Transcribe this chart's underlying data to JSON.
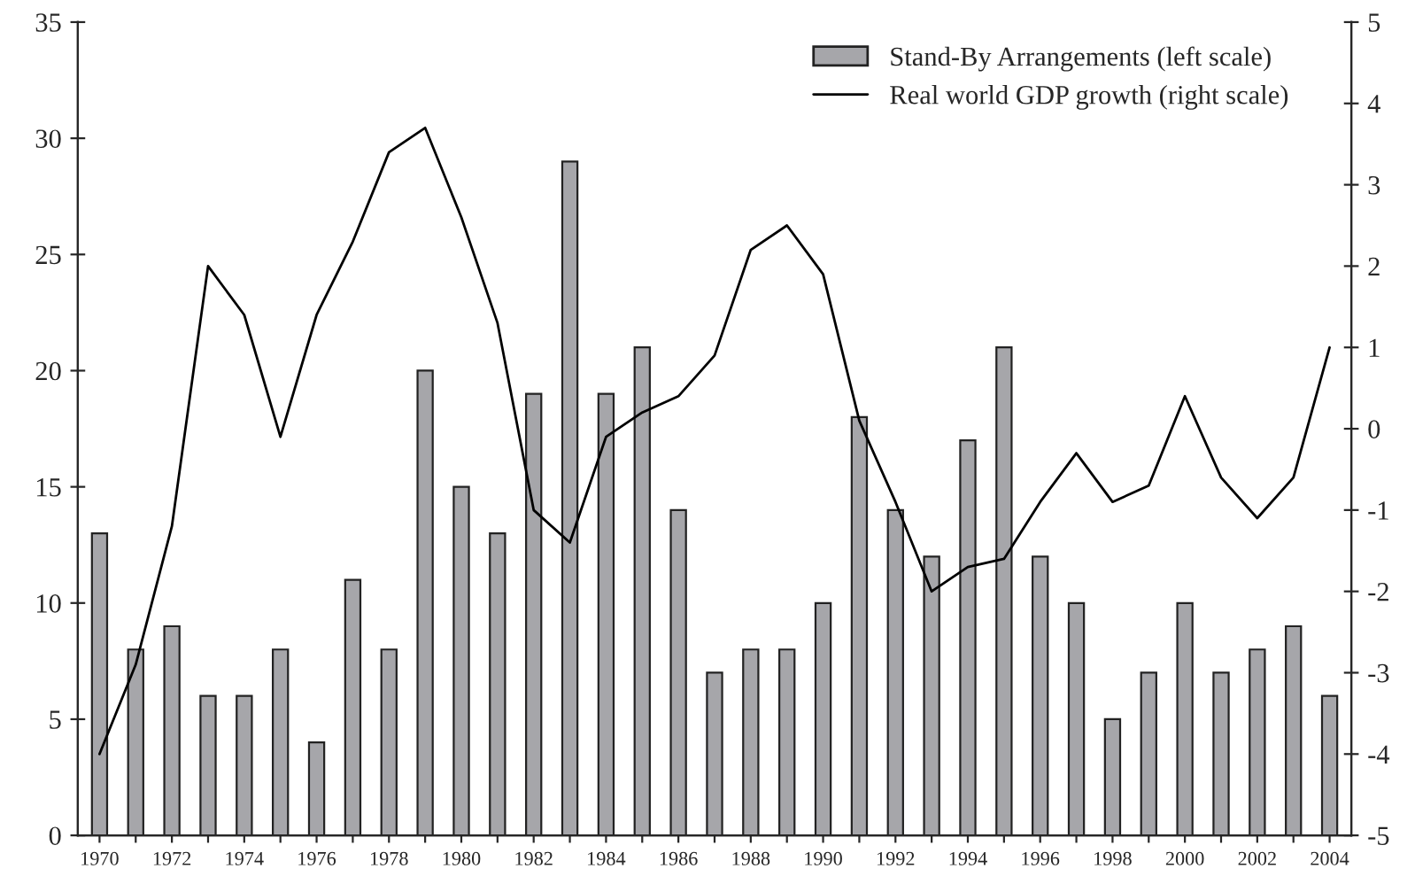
{
  "chart_data": {
    "type": "bar",
    "categories": [
      "1970",
      null,
      "1972",
      null,
      "1974",
      null,
      "1976",
      null,
      "1978",
      null,
      "1980",
      null,
      "1982",
      null,
      "1984",
      null,
      "1986",
      null,
      "1988",
      null,
      "1990",
      null,
      "1992",
      null,
      "1994",
      null,
      "1996",
      null,
      "1998",
      null,
      "2000",
      null,
      "2002",
      null,
      "2004"
    ],
    "series": [
      {
        "name": "Stand-By Arrangements (left scale)",
        "color": "#a6a6aa",
        "values": [
          13,
          8,
          9,
          6,
          6,
          8,
          4,
          11,
          8,
          20,
          15,
          13,
          19,
          29,
          19,
          21,
          14,
          7,
          8,
          8,
          10,
          18,
          14,
          12,
          17,
          21,
          12,
          10,
          5,
          7,
          10,
          7,
          8,
          9,
          6
        ]
      },
      {
        "name": "Real world GDP growth (right scale)",
        "type": "line",
        "axis": "y2",
        "color": "#000000",
        "values": [
          -4.0,
          -2.9,
          -1.2,
          2.0,
          1.4,
          -0.1,
          1.4,
          2.3,
          3.4,
          3.7,
          2.6,
          1.3,
          -1.0,
          -1.4,
          -0.1,
          0.2,
          0.4,
          0.9,
          2.2,
          2.5,
          1.9,
          0.1,
          -0.9,
          -2.0,
          -1.7,
          -1.6,
          -0.9,
          -0.3,
          -0.9,
          -0.7,
          0.4,
          -0.6,
          -1.1,
          -0.6,
          1.0
        ]
      }
    ],
    "ylim": [
      0,
      35
    ],
    "yticks": [
      0,
      5,
      10,
      15,
      20,
      25,
      30,
      35
    ],
    "y2lim": [
      -5,
      5
    ],
    "y2ticks": [
      -5,
      -4,
      -3,
      -2,
      -1,
      0,
      1,
      2,
      3,
      4,
      5
    ],
    "legend": "top right",
    "grid": false
  }
}
